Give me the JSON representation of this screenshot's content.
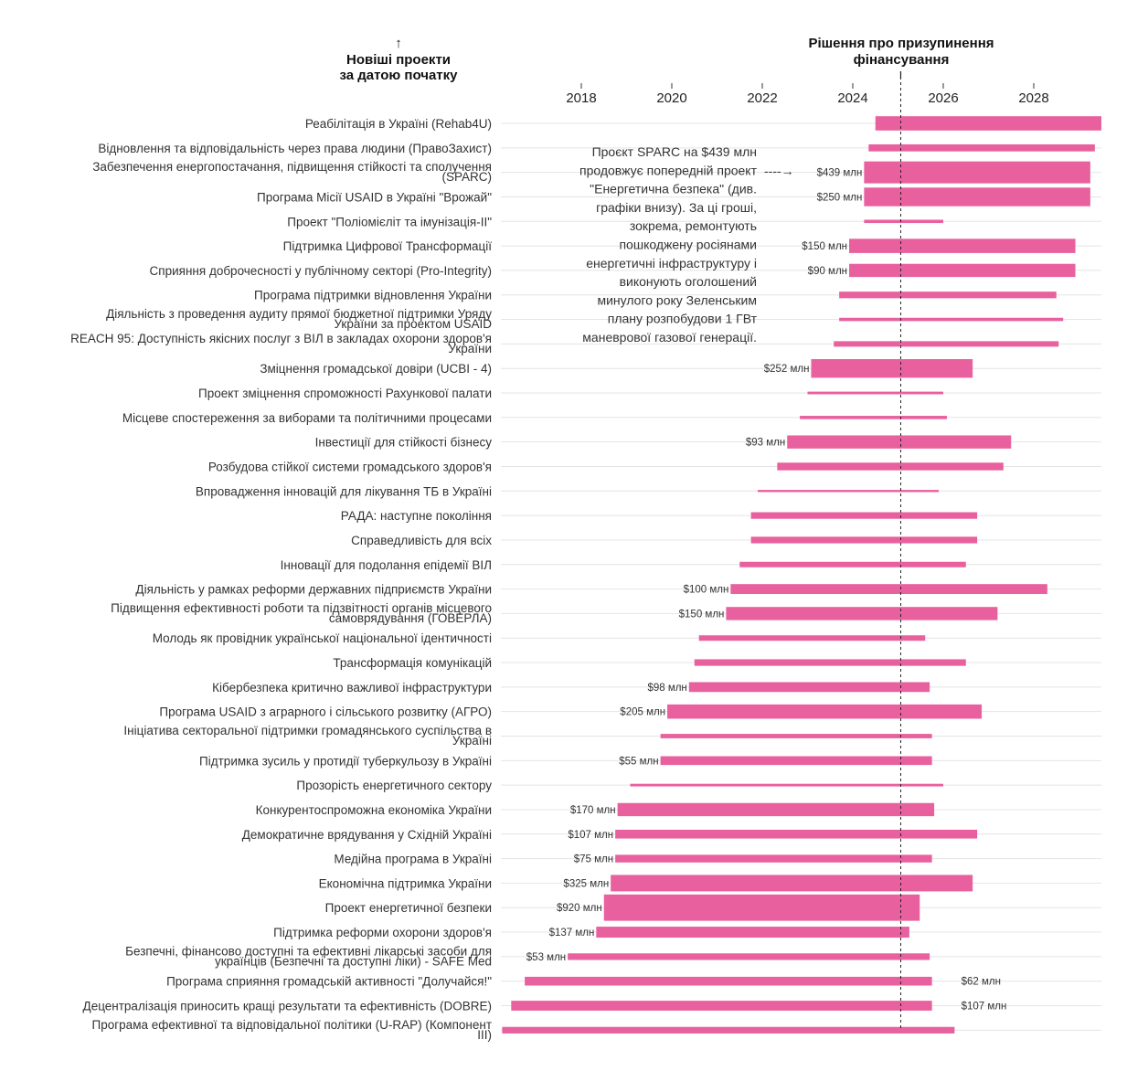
{
  "header": {
    "left_arrow": "↑",
    "left_title_lines": [
      "Новіші проекти",
      "за датою початку"
    ],
    "right_title_lines": [
      "Рішення про призупинення",
      "фінансування"
    ]
  },
  "annotation": {
    "lines": [
      "Проєкт SPARC на $439 млн",
      "продовжує попередній проект",
      "\"Енергетична безпека\" (див.",
      "графіки внизу). За ці гроші,",
      "зокрема, ремонтують",
      "пошкоджену росіянами",
      "енергетичні інфраструктуру і",
      "виконують оголошений",
      "минулого року Зеленським",
      "плану розпобудови 1 ГВт",
      "маневрової газової генерації."
    ],
    "arrow": "----→"
  },
  "chart_data": {
    "type": "bar",
    "subtype": "gantt",
    "x_axis": {
      "range": [
        2015.2,
        2029.5
      ],
      "ticks": [
        2018,
        2020,
        2022,
        2024,
        2026,
        2028
      ]
    },
    "reference_line": {
      "x": 2025.06
    },
    "bar_color": "#e8619e",
    "projects": [
      {
        "label_lines": [
          "Реабілітація в Україні (Rehab4U)"
        ],
        "start": 2024.5,
        "end": 2029.5,
        "amount": "",
        "amount_side": "left",
        "thickness": 0.65
      },
      {
        "label_lines": [
          "Відновлення та відповідальність через права людини (ПравоЗахист)"
        ],
        "start": 2024.35,
        "end": 2029.35,
        "amount": "",
        "amount_side": "left",
        "thickness": 0.32
      },
      {
        "label_lines": [
          "Забезпечення енергопостачання, підвищення стійкості та сполучення",
          "(SPARC)"
        ],
        "start": 2024.25,
        "end": 2029.25,
        "amount": "$439 млн",
        "amount_side": "left",
        "thickness": 1.0
      },
      {
        "label_lines": [
          "Програма Місії USAID в Україні \"Врожай\""
        ],
        "start": 2024.25,
        "end": 2029.25,
        "amount": "$250 млн",
        "amount_side": "left",
        "thickness": 0.85
      },
      {
        "label_lines": [
          "Проект \"Поліомієліт та імунізація-II\""
        ],
        "start": 2024.25,
        "end": 2026.0,
        "amount": "",
        "amount_side": "left",
        "thickness": 0.15
      },
      {
        "label_lines": [
          "Підтримка Цифрової Трансформації"
        ],
        "start": 2023.92,
        "end": 2028.92,
        "amount": "$150 млн",
        "amount_side": "left",
        "thickness": 0.65
      },
      {
        "label_lines": [
          "Сприяння доброчесності у публічному секторі (Pro-Integrity)"
        ],
        "start": 2023.92,
        "end": 2028.92,
        "amount": "$90 млн",
        "amount_side": "left",
        "thickness": 0.6
      },
      {
        "label_lines": [
          "Програма підтримки відновлення України"
        ],
        "start": 2023.7,
        "end": 2028.5,
        "amount": "",
        "amount_side": "left",
        "thickness": 0.3
      },
      {
        "label_lines": [
          "Діяльність з проведення аудиту прямої бюджетної підтримки Уряду",
          "України за проектом USAID"
        ],
        "start": 2023.7,
        "end": 2028.65,
        "amount": "",
        "amount_side": "left",
        "thickness": 0.15
      },
      {
        "label_lines": [
          "REACH 95: Доступність якісних послуг з ВІЛ в закладах охорони здоров'я",
          "України"
        ],
        "start": 2023.58,
        "end": 2028.55,
        "amount": "",
        "amount_side": "left",
        "thickness": 0.25
      },
      {
        "label_lines": [
          "Зміцнення громадської довіри (UCBI - 4)"
        ],
        "start": 2023.08,
        "end": 2026.65,
        "amount": "$252 млн",
        "amount_side": "left",
        "thickness": 0.85
      },
      {
        "label_lines": [
          "Проект зміцнення спроможності Рахункової палати"
        ],
        "start": 2023.0,
        "end": 2026.0,
        "amount": "",
        "amount_side": "left",
        "thickness": 0.12
      },
      {
        "label_lines": [
          "Місцеве спостереження за виборами та політичними процесами"
        ],
        "start": 2022.83,
        "end": 2026.08,
        "amount": "",
        "amount_side": "left",
        "thickness": 0.15
      },
      {
        "label_lines": [
          "Інвестиції для стійкості бізнесу"
        ],
        "start": 2022.55,
        "end": 2027.5,
        "amount": "$93 млн",
        "amount_side": "left",
        "thickness": 0.6
      },
      {
        "label_lines": [
          "Розбудова стійкої системи громадського здоров'я"
        ],
        "start": 2022.33,
        "end": 2027.33,
        "amount": "",
        "amount_side": "left",
        "thickness": 0.35
      },
      {
        "label_lines": [
          "Впровадження інновацій для лікування ТБ в Україні"
        ],
        "start": 2021.9,
        "end": 2025.9,
        "amount": "",
        "amount_side": "left",
        "thickness": 0.1
      },
      {
        "label_lines": [
          "РАДА: наступне покоління"
        ],
        "start": 2021.75,
        "end": 2026.75,
        "amount": "",
        "amount_side": "left",
        "thickness": 0.3
      },
      {
        "label_lines": [
          "Справедливість для всіх"
        ],
        "start": 2021.75,
        "end": 2026.75,
        "amount": "",
        "amount_side": "left",
        "thickness": 0.3
      },
      {
        "label_lines": [
          "Інновації для подолання епідемії ВІЛ"
        ],
        "start": 2021.5,
        "end": 2026.5,
        "amount": "",
        "amount_side": "left",
        "thickness": 0.25
      },
      {
        "label_lines": [
          "Діяльність у рамках реформи державних підприємств України"
        ],
        "start": 2021.3,
        "end": 2028.3,
        "amount": "$100 млн",
        "amount_side": "left",
        "thickness": 0.45
      },
      {
        "label_lines": [
          "Підвищення ефективності роботи та підзвітності органів місцевого",
          "самоврядування (ГОВЕРЛА)"
        ],
        "start": 2021.2,
        "end": 2027.2,
        "amount": "$150 млн",
        "amount_side": "left",
        "thickness": 0.6
      },
      {
        "label_lines": [
          "Молодь як провідник української національної  ідентичності"
        ],
        "start": 2020.6,
        "end": 2025.6,
        "amount": "",
        "amount_side": "left",
        "thickness": 0.25
      },
      {
        "label_lines": [
          "Трансформація комунікацій"
        ],
        "start": 2020.5,
        "end": 2026.5,
        "amount": "",
        "amount_side": "left",
        "thickness": 0.3
      },
      {
        "label_lines": [
          "Кібербезпека критично важливої інфраструктури"
        ],
        "start": 2020.38,
        "end": 2025.7,
        "amount": "$98 млн",
        "amount_side": "left",
        "thickness": 0.45
      },
      {
        "label_lines": [
          "Програма USAID з аграрного і сільського розвитку (АГРО)"
        ],
        "start": 2019.9,
        "end": 2026.85,
        "amount": "$205 млн",
        "amount_side": "left",
        "thickness": 0.65
      },
      {
        "label_lines": [
          "Ініціатива секторальної підтримки громадянського суспільства в",
          "Україні"
        ],
        "start": 2019.75,
        "end": 2025.75,
        "amount": "",
        "amount_side": "left",
        "thickness": 0.2
      },
      {
        "label_lines": [
          "Підтримка зусиль у протидії туберкульозу в Україні"
        ],
        "start": 2019.75,
        "end": 2025.75,
        "amount": "$55 млн",
        "amount_side": "left",
        "thickness": 0.4
      },
      {
        "label_lines": [
          "Прозорість енергетичного сектору"
        ],
        "start": 2019.08,
        "end": 2026.0,
        "amount": "",
        "amount_side": "left",
        "thickness": 0.12
      },
      {
        "label_lines": [
          "Конкурентоспроможна економіка України"
        ],
        "start": 2018.8,
        "end": 2025.8,
        "amount": "$170 млн",
        "amount_side": "left",
        "thickness": 0.6
      },
      {
        "label_lines": [
          "Демократичне врядування у Східній Україні"
        ],
        "start": 2018.75,
        "end": 2026.75,
        "amount": "$107 млн",
        "amount_side": "left",
        "thickness": 0.4
      },
      {
        "label_lines": [
          "Медійна програма в Україні"
        ],
        "start": 2018.75,
        "end": 2025.75,
        "amount": "$75 млн",
        "amount_side": "left",
        "thickness": 0.35
      },
      {
        "label_lines": [
          "Економічна підтримка України"
        ],
        "start": 2018.65,
        "end": 2026.65,
        "amount": "$325 млн",
        "amount_side": "left",
        "thickness": 0.75
      },
      {
        "label_lines": [
          "Проект енергетичної безпеки"
        ],
        "start": 2018.5,
        "end": 2025.48,
        "amount": "$920 млн",
        "amount_side": "left",
        "thickness": 1.2
      },
      {
        "label_lines": [
          "Підтримка реформи охорони здоров'я"
        ],
        "start": 2018.33,
        "end": 2025.25,
        "amount": "$137 млн",
        "amount_side": "left",
        "thickness": 0.5
      },
      {
        "label_lines": [
          "Безпечні, фінансово доступні та ефективні лікарські засоби для",
          "українців (Безпечні та доступні ліки) - SAFE Med"
        ],
        "start": 2017.7,
        "end": 2025.7,
        "amount": "$53 млн",
        "amount_side": "left",
        "thickness": 0.3
      },
      {
        "label_lines": [
          "Програма сприяння громадській активності \"Долучайся!\""
        ],
        "start": 2016.75,
        "end": 2025.75,
        "amount": "$62 млн",
        "amount_side": "right",
        "thickness": 0.4
      },
      {
        "label_lines": [
          "Децентралізація приносить кращі результати та ефективність (DOBRE)"
        ],
        "start": 2016.45,
        "end": 2025.75,
        "amount": "$107 млн",
        "amount_side": "right",
        "thickness": 0.45
      },
      {
        "label_lines": [
          "Програма ефективної та відповідальної політики (U-RAP) (Компонент",
          "III)"
        ],
        "start": 2016.25,
        "end": 2026.25,
        "amount": "",
        "amount_side": "left",
        "thickness": 0.3
      }
    ]
  }
}
